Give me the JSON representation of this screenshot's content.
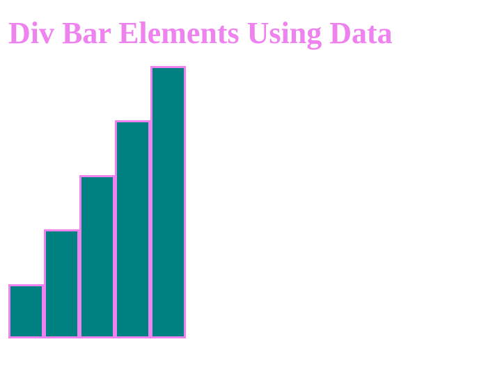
{
  "title": "Div Bar Elements Using Data",
  "colors": {
    "title": "#ee82ee",
    "bar_fill": "#008080",
    "bar_border": "#ee82ee"
  },
  "chart_data": {
    "type": "bar",
    "title": "Div Bar Elements Using Data",
    "categories": [
      "",
      "",
      "",
      "",
      ""
    ],
    "values": [
      1,
      2,
      3,
      4,
      5
    ],
    "ylim": [
      0,
      5
    ],
    "grid": false,
    "legend": "none"
  }
}
